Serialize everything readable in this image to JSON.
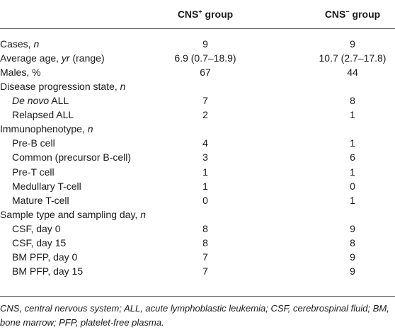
{
  "table": {
    "headers": [
      {
        "text": "CNS",
        "sup": "+",
        "rest": " group"
      },
      {
        "text": "CNS",
        "sup": "−",
        "rest": " group"
      }
    ],
    "rows": [
      {
        "label": [
          {
            "text": "Cases, "
          },
          {
            "text": "n",
            "italic": true
          }
        ],
        "values": [
          9,
          9
        ]
      },
      {
        "label": [
          {
            "text": "Average age, "
          },
          {
            "text": "yr",
            "italic": true
          },
          {
            "text": " (range)"
          }
        ],
        "values": [
          "6.9 (0.7–18.9)",
          "10.7 (2.7–17.8)"
        ]
      },
      {
        "label": [
          {
            "text": "Males, %"
          }
        ],
        "values": [
          67,
          44
        ]
      }
    ],
    "sections": [
      {
        "title": [
          {
            "text": "Disease progression state, "
          },
          {
            "text": "n",
            "italic": true
          }
        ],
        "rows": [
          {
            "label": [
              {
                "text": "De novo",
                "italic": true
              },
              {
                "text": " ALL"
              }
            ],
            "values": [
              7,
              8
            ]
          },
          {
            "label": [
              {
                "text": "Relapsed ALL"
              }
            ],
            "values": [
              2,
              1
            ]
          }
        ]
      },
      {
        "title": [
          {
            "text": "Immunophenotype, "
          },
          {
            "text": "n",
            "italic": true
          }
        ],
        "rows": [
          {
            "label": [
              {
                "text": "Pre-B cell"
              }
            ],
            "values": [
              4,
              1
            ]
          },
          {
            "label": [
              {
                "text": "Common (precursor B-cell)"
              }
            ],
            "values": [
              3,
              6
            ]
          },
          {
            "label": [
              {
                "text": "Pre-T cell"
              }
            ],
            "values": [
              1,
              1
            ]
          },
          {
            "label": [
              {
                "text": "Medullary T-cell"
              }
            ],
            "values": [
              1,
              0
            ]
          },
          {
            "label": [
              {
                "text": "Mature T-cell"
              }
            ],
            "values": [
              0,
              1
            ]
          }
        ]
      },
      {
        "title": [
          {
            "text": "Sample type and sampling day, "
          },
          {
            "text": "n",
            "italic": true
          }
        ],
        "rows": [
          {
            "label": [
              {
                "text": "CSF, day 0"
              }
            ],
            "values": [
              8,
              9
            ]
          },
          {
            "label": [
              {
                "text": "CSF, day 15"
              }
            ],
            "values": [
              8,
              8
            ]
          },
          {
            "label": [
              {
                "text": "BM PFP, day 0"
              }
            ],
            "values": [
              7,
              9
            ]
          },
          {
            "label": [
              {
                "text": "BM PFP, day 15"
              }
            ],
            "values": [
              7,
              9
            ]
          }
        ]
      }
    ],
    "footnote": "CNS, central nervous system; ALL, acute lymphoblastic leukemia; CSF, cerebrospinal fluid; BM, bone marrow; PFP, platelet-free plasma."
  }
}
